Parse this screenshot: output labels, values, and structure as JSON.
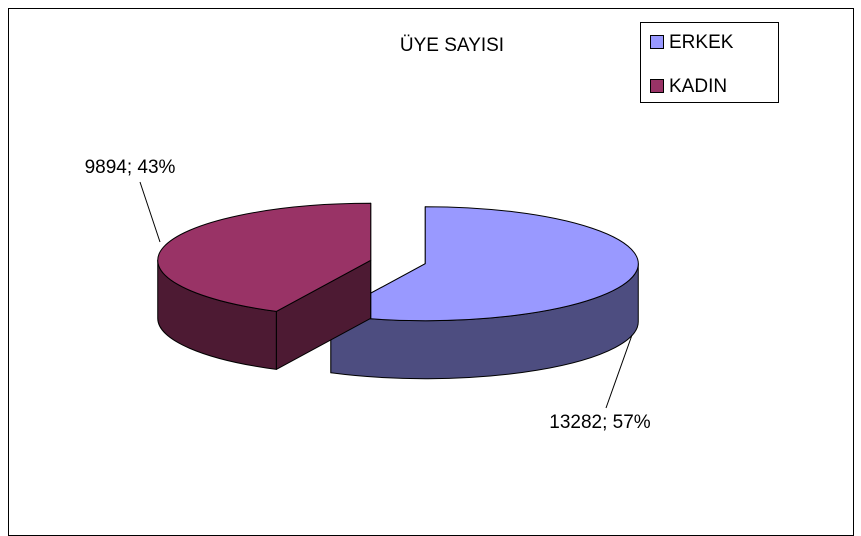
{
  "chart_data": {
    "type": "pie3d",
    "title": "ÜYE SAYISI",
    "categories": [
      "ERKEK",
      "KADIN"
    ],
    "values": [
      13282,
      9894
    ],
    "value_labels": [
      "13282; 57%",
      "9894; 43%"
    ],
    "colors": [
      "#9999ff",
      "#993366"
    ],
    "legend": "top-right"
  }
}
